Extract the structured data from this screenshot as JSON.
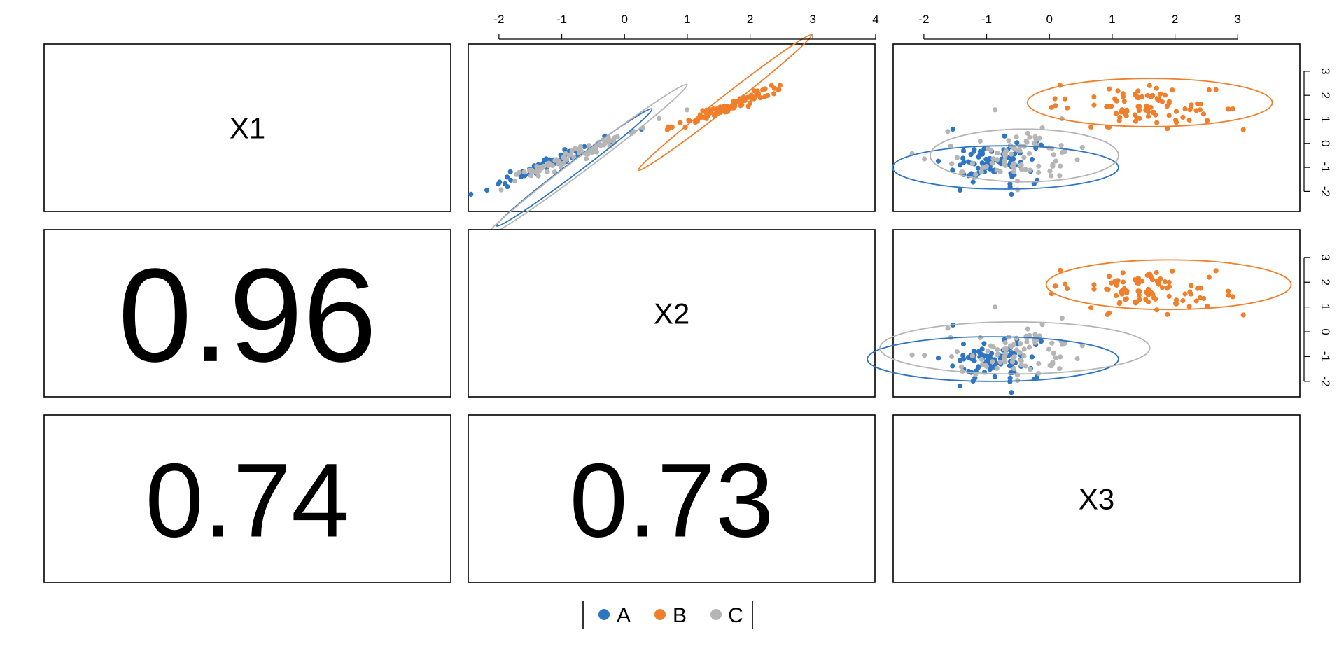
{
  "chart_data": {
    "type": "scatter",
    "variables": [
      "X1",
      "X2",
      "X3"
    ],
    "axis_ranges": {
      "X1": [
        -2.6,
        3.9
      ],
      "X2": [
        -2.4,
        3.9
      ],
      "X3": [
        -2.4,
        3.9
      ]
    },
    "axis_ticks": {
      "X1": [
        -2,
        -1,
        0,
        1,
        2,
        3
      ],
      "X2": [
        -2,
        -1,
        0,
        1,
        2,
        3,
        4
      ],
      "X3": [
        -2,
        -1,
        0,
        1,
        2,
        3
      ]
    },
    "correlations": [
      {
        "row": "X2",
        "col": "X1",
        "value": "0.96"
      },
      {
        "row": "X3",
        "col": "X1",
        "value": "0.74"
      },
      {
        "row": "X3",
        "col": "X2",
        "value": "0.73"
      }
    ],
    "groups": [
      {
        "name": "A",
        "color": "#2e75c3",
        "center": {
          "X1": -0.75,
          "X2": -1.1,
          "X3": -0.95
        },
        "spread": {
          "X1": 0.45,
          "X2": 0.35,
          "X3": 0.35
        }
      },
      {
        "name": "B",
        "color": "#f07f2b",
        "center": {
          "X1": 1.6,
          "X2": 1.7,
          "X3": 1.6
        },
        "spread": {
          "X1": 0.45,
          "X2": 0.45,
          "X3": 0.55
        }
      },
      {
        "name": "C",
        "color": "#b5b5b5",
        "center": {
          "X1": -0.4,
          "X2": -0.7,
          "X3": -0.55
        },
        "spread": {
          "X1": 0.55,
          "X2": 0.5,
          "X3": 0.55
        }
      }
    ],
    "ellipses": {
      "X1_X2": [
        {
          "group": "A",
          "cx": -0.8,
          "cy": -1.0,
          "rx": 1.55,
          "ry": 0.25,
          "angle_deg": 37
        },
        {
          "group": "B",
          "cx": 1.6,
          "cy": 1.7,
          "rx": 1.75,
          "ry": 0.25,
          "angle_deg": 38
        },
        {
          "group": "C",
          "cx": -0.6,
          "cy": -0.7,
          "rx": 2.0,
          "ry": 0.3,
          "angle_deg": 37
        }
      ],
      "X1_X3": [
        {
          "group": "A",
          "cx": -0.7,
          "cy": -1.0,
          "rx": 1.8,
          "ry": 0.9,
          "angle_deg": 0
        },
        {
          "group": "B",
          "cx": 1.6,
          "cy": 1.7,
          "rx": 1.95,
          "ry": 1.0,
          "angle_deg": 0
        },
        {
          "group": "C",
          "cx": -0.4,
          "cy": -0.5,
          "rx": 1.5,
          "ry": 1.1,
          "angle_deg": 0
        }
      ],
      "X2_X3": [
        {
          "group": "A",
          "cx": -0.9,
          "cy": -1.1,
          "rx": 2.0,
          "ry": 0.9,
          "angle_deg": 0
        },
        {
          "group": "B",
          "cx": 1.9,
          "cy": 1.9,
          "rx": 1.95,
          "ry": 1.0,
          "angle_deg": 0
        },
        {
          "group": "C",
          "cx": -0.55,
          "cy": -0.65,
          "rx": 2.15,
          "ry": 1.05,
          "angle_deg": 0
        }
      ]
    },
    "legend": {
      "position": "bottom",
      "entries": [
        "A",
        "B",
        "C"
      ]
    },
    "grid": false
  }
}
